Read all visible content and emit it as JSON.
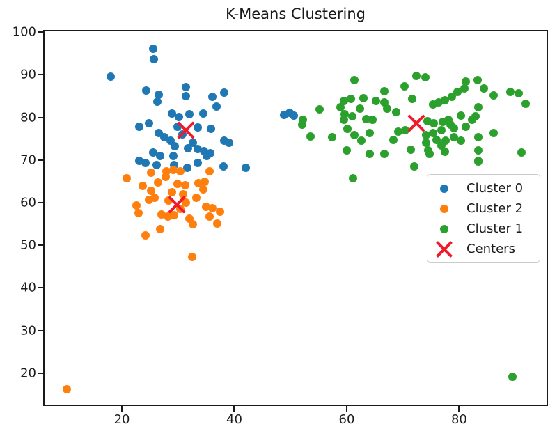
{
  "title": "K-Means Clustering",
  "colors": {
    "cluster0": "#1f77b4",
    "cluster2": "#ff7f0e",
    "cluster1": "#2ca02c",
    "centers": "#ee1b2d",
    "axis": "#1a1a1a"
  },
  "legend": {
    "entries": [
      {
        "label": "Cluster 0",
        "marker": "dot",
        "color": "#1f77b4"
      },
      {
        "label": "Cluster 2",
        "marker": "dot",
        "color": "#ff7f0e"
      },
      {
        "label": "Cluster 1",
        "marker": "dot",
        "color": "#2ca02c"
      },
      {
        "label": "Centers",
        "marker": "x",
        "color": "#ee1b2d"
      }
    ]
  },
  "chart_data": {
    "type": "scatter",
    "title": "K-Means Clustering",
    "xlabel": "",
    "ylabel": "",
    "xlim": [
      6.0,
      95.8
    ],
    "ylim": [
      12.3,
      100.5
    ],
    "xticks": [
      20,
      40,
      60,
      80
    ],
    "yticks": [
      20,
      30,
      40,
      50,
      60,
      70,
      80,
      90,
      100
    ],
    "grid": false,
    "legend_position": "center right",
    "series": [
      {
        "name": "Cluster 0",
        "marker": "dot",
        "color": "#1f77b4",
        "points": [
          [
            25.3,
            96.4
          ],
          [
            25.4,
            94.0
          ],
          [
            17.8,
            89.9
          ],
          [
            24.1,
            86.6
          ],
          [
            26.3,
            85.6
          ],
          [
            26.1,
            84.0
          ],
          [
            31.1,
            87.5
          ],
          [
            31.1,
            85.3
          ],
          [
            35.8,
            85.1
          ],
          [
            37.9,
            86.1
          ],
          [
            36.6,
            82.8
          ],
          [
            28.7,
            81.3
          ],
          [
            31.8,
            81.0
          ],
          [
            34.2,
            81.2
          ],
          [
            29.9,
            80.4
          ],
          [
            48.6,
            80.9
          ],
          [
            49.6,
            81.4
          ],
          [
            50.3,
            80.7
          ],
          [
            22.9,
            78.1
          ],
          [
            24.6,
            78.9
          ],
          [
            26.3,
            76.7
          ],
          [
            27.3,
            75.6
          ],
          [
            28.4,
            74.8
          ],
          [
            29.6,
            78.2
          ],
          [
            30.5,
            76.3
          ],
          [
            33.3,
            78.0
          ],
          [
            35.6,
            77.6
          ],
          [
            32.4,
            74.3
          ],
          [
            38.0,
            74.9
          ],
          [
            38.8,
            74.3
          ],
          [
            29.2,
            73.6
          ],
          [
            31.5,
            73.0
          ],
          [
            33.2,
            72.9
          ],
          [
            34.4,
            72.4
          ],
          [
            35.5,
            71.9
          ],
          [
            25.3,
            72.0
          ],
          [
            26.6,
            71.2
          ],
          [
            22.8,
            70.2
          ],
          [
            24.0,
            69.6
          ],
          [
            25.9,
            69.2
          ],
          [
            28.9,
            71.3
          ],
          [
            29.1,
            69.1
          ],
          [
            31.4,
            68.5
          ],
          [
            33.3,
            69.7
          ],
          [
            34.9,
            71.3
          ],
          [
            37.8,
            68.8
          ],
          [
            41.8,
            68.5
          ]
        ]
      },
      {
        "name": "Cluster 2",
        "marker": "dot",
        "color": "#ff7f0e",
        "points": [
          [
            20.6,
            66.0
          ],
          [
            25.0,
            67.3
          ],
          [
            27.7,
            67.6
          ],
          [
            28.9,
            68.0
          ],
          [
            30.1,
            67.6
          ],
          [
            27.5,
            66.3
          ],
          [
            26.2,
            65.0
          ],
          [
            29.7,
            64.7
          ],
          [
            31.0,
            64.4
          ],
          [
            33.4,
            64.9
          ],
          [
            34.5,
            65.3
          ],
          [
            35.3,
            67.6
          ],
          [
            34.3,
            63.4
          ],
          [
            24.9,
            63.1
          ],
          [
            23.5,
            64.2
          ],
          [
            25.6,
            61.5
          ],
          [
            24.6,
            60.9
          ],
          [
            28.7,
            62.8
          ],
          [
            30.6,
            62.3
          ],
          [
            31.2,
            60.4
          ],
          [
            33.0,
            61.5
          ],
          [
            22.3,
            59.6
          ],
          [
            22.7,
            57.9
          ],
          [
            26.8,
            57.6
          ],
          [
            27.9,
            57.1
          ],
          [
            29.1,
            57.3
          ],
          [
            28.0,
            60.8
          ],
          [
            30.2,
            58.8
          ],
          [
            34.7,
            59.3
          ],
          [
            35.9,
            59.0
          ],
          [
            37.2,
            58.2
          ],
          [
            35.3,
            57.1
          ],
          [
            36.7,
            55.4
          ],
          [
            32.4,
            55.2
          ],
          [
            31.8,
            56.6
          ],
          [
            26.6,
            54.1
          ],
          [
            24.0,
            52.7
          ],
          [
            32.2,
            47.6
          ],
          [
            10.0,
            16.5
          ]
        ]
      },
      {
        "name": "Cluster 1",
        "marker": "dot",
        "color": "#2ca02c",
        "points": [
          [
            61.1,
            89.0
          ],
          [
            70.0,
            87.6
          ],
          [
            72.2,
            90.1
          ],
          [
            66.5,
            86.5
          ],
          [
            62.7,
            84.9
          ],
          [
            59.2,
            84.1
          ],
          [
            60.5,
            84.6
          ],
          [
            65.0,
            84.1
          ],
          [
            66.5,
            83.8
          ],
          [
            71.4,
            84.6
          ],
          [
            54.9,
            82.2
          ],
          [
            58.6,
            82.7
          ],
          [
            62.1,
            82.4
          ],
          [
            66.9,
            82.4
          ],
          [
            68.5,
            81.6
          ],
          [
            59.4,
            81.1
          ],
          [
            60.7,
            80.5
          ],
          [
            51.8,
            78.6
          ],
          [
            52.0,
            79.8
          ],
          [
            59.2,
            79.7
          ],
          [
            63.2,
            80.0
          ],
          [
            64.4,
            79.7
          ],
          [
            68.9,
            77.0
          ],
          [
            53.3,
            75.9
          ],
          [
            57.2,
            75.6
          ],
          [
            59.9,
            77.6
          ],
          [
            61.1,
            76.2
          ],
          [
            62.3,
            74.8
          ],
          [
            63.8,
            76.7
          ],
          [
            68.1,
            75.1
          ],
          [
            59.7,
            72.6
          ],
          [
            63.8,
            71.8
          ],
          [
            66.5,
            71.8
          ],
          [
            71.2,
            72.7
          ],
          [
            71.8,
            68.8
          ],
          [
            60.9,
            66.1
          ],
          [
            70.2,
            77.3
          ],
          [
            73.7,
            89.8
          ],
          [
            80.9,
            88.7
          ],
          [
            83.0,
            89.0
          ],
          [
            84.2,
            87.1
          ],
          [
            79.5,
            86.3
          ],
          [
            80.7,
            87.1
          ],
          [
            85.9,
            85.4
          ],
          [
            88.9,
            86.3
          ],
          [
            90.4,
            86.0
          ],
          [
            78.4,
            85.2
          ],
          [
            77.2,
            84.4
          ],
          [
            76.1,
            83.8
          ],
          [
            75.1,
            83.3
          ],
          [
            91.6,
            83.5
          ],
          [
            83.2,
            82.7
          ],
          [
            80.1,
            80.8
          ],
          [
            82.7,
            80.5
          ],
          [
            74.1,
            79.4
          ],
          [
            75.3,
            78.9
          ],
          [
            76.8,
            79.2
          ],
          [
            78.2,
            78.6
          ],
          [
            77.8,
            79.7
          ],
          [
            82.1,
            79.7
          ],
          [
            76.6,
            77.3
          ],
          [
            75.1,
            76.7
          ],
          [
            73.9,
            76.2
          ],
          [
            78.8,
            77.8
          ],
          [
            80.9,
            78.1
          ],
          [
            75.7,
            75.1
          ],
          [
            77.4,
            74.8
          ],
          [
            78.8,
            75.6
          ],
          [
            80.1,
            74.8
          ],
          [
            73.9,
            74.3
          ],
          [
            76.6,
            73.7
          ],
          [
            85.9,
            76.7
          ],
          [
            83.2,
            75.6
          ],
          [
            74.3,
            72.6
          ],
          [
            77.2,
            72.3
          ],
          [
            83.2,
            72.6
          ],
          [
            74.5,
            71.8
          ],
          [
            83.2,
            70.2
          ],
          [
            90.8,
            72.1
          ],
          [
            83.2,
            69.9
          ],
          [
            89.2,
            19.5
          ]
        ]
      },
      {
        "name": "Centers",
        "marker": "x",
        "color": "#ee1b2d",
        "points": [
          [
            31.2,
            77.3
          ],
          [
            29.5,
            59.9
          ],
          [
            72.2,
            79.0
          ]
        ]
      }
    ]
  }
}
